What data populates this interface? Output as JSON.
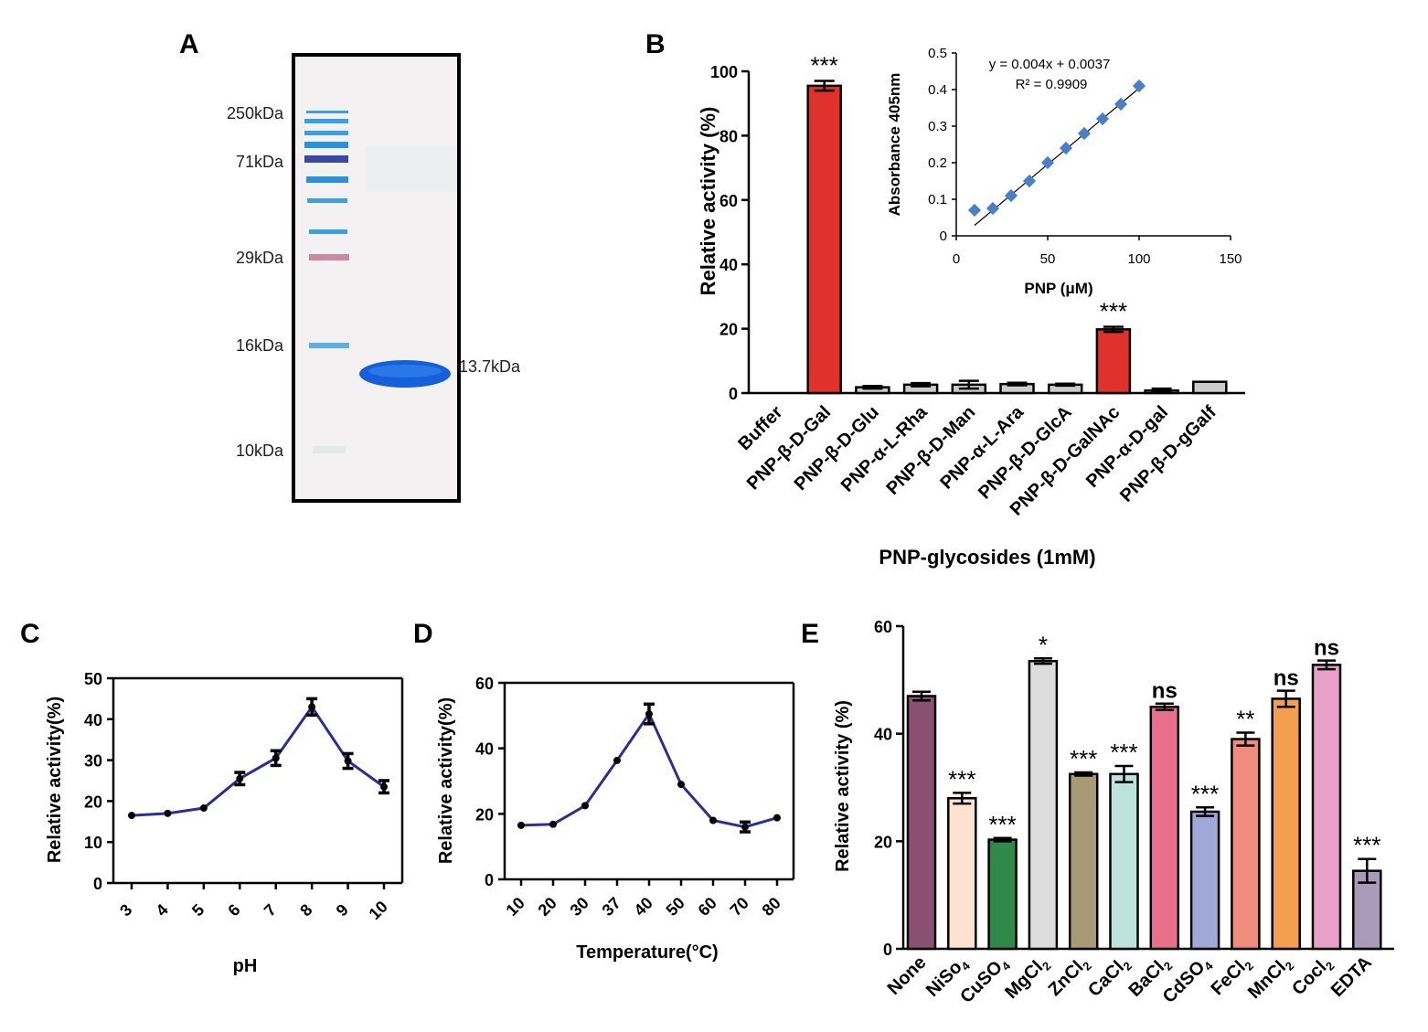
{
  "panels": {
    "A": "A",
    "B": "B",
    "C": "C",
    "D": "D",
    "E": "E"
  },
  "chart_data": [
    {
      "id": "A",
      "type": "gel",
      "markers": [
        "250kDa",
        "71kDa",
        "29kDa",
        "16kDa",
        "10kDa"
      ],
      "band_label": "13.7kDa",
      "colors": {
        "band": "#1560d8",
        "ladder": "#3aa0e6",
        "ladder_dark": "#3a4aa0",
        "ladder_pink": "#c07090",
        "gel": "#f4f1f3"
      }
    },
    {
      "id": "B",
      "type": "bar",
      "categories": [
        "Buffer",
        "PNP-β-D-Gal",
        "PNP-β-D-Glu",
        "PNP-α-L-Rha",
        "PNP-β-D-Man",
        "PNP-α-L-Ara",
        "PNP-β-D-GlcA",
        "PNP-β-D-GalNAc",
        "PNP-α-D-gal",
        "PNP-β-D-gGalf"
      ],
      "values": [
        0,
        95.5,
        1.8,
        2.6,
        2.6,
        2.8,
        2.6,
        19.8,
        0.8,
        3.5
      ],
      "errors": [
        0,
        1.5,
        0.4,
        0.5,
        1.2,
        0.4,
        0.3,
        0.8,
        0.6,
        0
      ],
      "colors": [
        "#cccccc",
        "#e0322a",
        "#cccccc",
        "#cccccc",
        "#cccccc",
        "#cccccc",
        "#cccccc",
        "#e0322a",
        "#cccccc",
        "#cccccc"
      ],
      "significance": [
        "",
        "***",
        "",
        "",
        "",
        "",
        "",
        "***",
        "",
        ""
      ],
      "ylabel": "Relative activity (%)",
      "xlabel": "PNP-glycosides (1mM)",
      "ylim": [
        0,
        100
      ],
      "yticks": [
        "0",
        "20",
        "40",
        "60",
        "80",
        "100"
      ],
      "inset": {
        "type": "scatter",
        "x": [
          10,
          20,
          30,
          40,
          50,
          60,
          70,
          80,
          90,
          100
        ],
        "y": [
          0.07,
          0.075,
          0.11,
          0.15,
          0.2,
          0.24,
          0.28,
          0.32,
          0.36,
          0.41
        ],
        "xlabel": "PNP (μM)",
        "ylabel": "Absorbance 405nm",
        "xlim": [
          0,
          150
        ],
        "ylim": [
          0,
          0.5
        ],
        "xticks": [
          "0",
          "50",
          "100",
          "150"
        ],
        "yticks": [
          "0",
          "0.1",
          "0.2",
          "0.3",
          "0.4",
          "0.5"
        ],
        "equation": "y = 0.004x + 0.0037",
        "r2": "R² = 0.9909",
        "fit": {
          "slope": 0.004,
          "intercept": 0.0037
        },
        "color": "#4a7fc8"
      }
    },
    {
      "id": "C",
      "type": "line",
      "categories": [
        "3",
        "4",
        "5",
        "6",
        "7",
        "8",
        "9",
        "10"
      ],
      "values": [
        16.5,
        17,
        18.3,
        25.5,
        30.5,
        43,
        29.8,
        23.5
      ],
      "errors": [
        0,
        0,
        0,
        1.5,
        1.8,
        2,
        1.8,
        1.5
      ],
      "xlabel": "pH",
      "ylabel": "Relative activity(%)",
      "ylim": [
        0,
        50
      ],
      "yticks": [
        "0",
        "10",
        "20",
        "30",
        "40",
        "50"
      ],
      "color": "#2a2e9a"
    },
    {
      "id": "D",
      "type": "line",
      "categories": [
        "10",
        "20",
        "30",
        "37",
        "40",
        "50",
        "60",
        "70",
        "80"
      ],
      "values": [
        16.5,
        16.8,
        22.5,
        36.3,
        50.5,
        29,
        18,
        16,
        18.8
      ],
      "errors": [
        0,
        0,
        0,
        0,
        3,
        0,
        0,
        1.5,
        0
      ],
      "xlabel": "Temperature(°C)",
      "ylabel": "Relative activity(%)",
      "ylim": [
        0,
        60
      ],
      "yticks": [
        "0",
        "20",
        "40",
        "60"
      ],
      "color": "#2a2e9a"
    },
    {
      "id": "E",
      "type": "bar",
      "categories": [
        {
          "base": "None",
          "sub": "",
          "post": ""
        },
        {
          "base": "NiSo",
          "sub": "4",
          "post": ""
        },
        {
          "base": "CuSO",
          "sub": "4",
          "post": ""
        },
        {
          "base": "MgCl",
          "sub": "2",
          "post": ""
        },
        {
          "base": "ZnCl",
          "sub": "2",
          "post": ""
        },
        {
          "base": "CaCl",
          "sub": "2",
          "post": ""
        },
        {
          "base": "BaCl",
          "sub": "2",
          "post": ""
        },
        {
          "base": "CdSO",
          "sub": "4",
          "post": ""
        },
        {
          "base": "FeCl",
          "sub": "2",
          "post": ""
        },
        {
          "base": "MnCl",
          "sub": "2",
          "post": ""
        },
        {
          "base": "Cocl",
          "sub": "2",
          "post": ""
        },
        {
          "base": "EDTA",
          "sub": "",
          "post": ""
        }
      ],
      "values": [
        47,
        28,
        20.3,
        53.5,
        32.5,
        32.5,
        45,
        25.5,
        39,
        46.5,
        52.8,
        14.5
      ],
      "errors": [
        0.8,
        1,
        0.3,
        0.5,
        0.3,
        1.5,
        0.6,
        0.8,
        1.2,
        1.5,
        0.8,
        2.2
      ],
      "colors": [
        "#8a5070",
        "#fde2d0",
        "#2f8a4a",
        "#dddddd",
        "#a89a74",
        "#bde4dc",
        "#e8708c",
        "#a0a8d8",
        "#ef8c7c",
        "#f2a050",
        "#e8a0c8",
        "#a89ab8"
      ],
      "significance": [
        "",
        "***",
        "***",
        "*",
        "***",
        "***",
        "ns",
        "***",
        "**",
        "ns",
        "ns",
        "***"
      ],
      "ylabel": "Relative activity (%)",
      "ylim": [
        0,
        60
      ],
      "yticks": [
        "0",
        "20",
        "40",
        "60"
      ]
    }
  ]
}
